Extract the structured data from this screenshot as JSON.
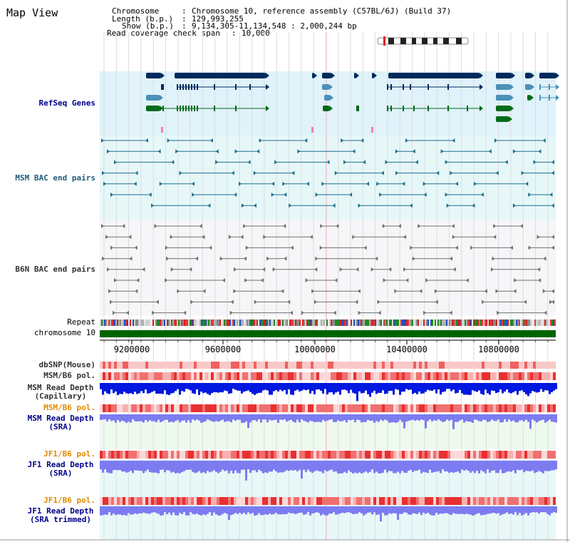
{
  "page": {
    "title": "Map View"
  },
  "info": {
    "chromosome_label": "Chromosome",
    "chromosome_value": "Chromosome 10, reference assembly (C57BL/6J) (Build 37)",
    "length_label": "Length (b.p.)",
    "length_value": "129,993,255",
    "show_label": "Show (b.p.)",
    "show_value": "9,134,305-11,134,548 : 2,000,244 bp",
    "span_label": "Read coverage check span",
    "span_value": "10,000"
  },
  "tracks": {
    "refseq": "RefSeq Genes",
    "msm_bac": "MSM BAC end pairs",
    "b6n_bac": "B6N BAC end pairs",
    "repeat": "Repeat",
    "chromosome": "chromosome 10",
    "dbsnp": "dbSNP(Mouse)",
    "msm_b6_pol": "MSM/B6 pol.",
    "msm_depth_cap_1": "MSM Read Depth",
    "msm_depth_cap_2": "(Capillary)",
    "msm_b6_pol_2": "MSM/B6 pol.",
    "msm_depth_sra_1": "MSM Read Depth",
    "msm_depth_sra_2": "(SRA)",
    "jf1_b6_pol": "JF1/B6 pol.",
    "jf1_depth_sra_1": "JF1 Read Depth",
    "jf1_depth_sra_2": "(SRA)",
    "jf1_b6_pol_2": "JF1/B6 pol.",
    "jf1_depth_trim_1": "JF1 Read Depth",
    "jf1_depth_trim_2": "(SRA trimmed)"
  },
  "axis": {
    "ticks": [
      "9200000",
      "9600000",
      "10000000",
      "10400000",
      "10800000"
    ]
  },
  "colors": {
    "refseq_bg": "#e0f2fa",
    "gene_dark": "#002a5c",
    "gene_mid": "#4a90b8",
    "gene_green": "#006b1a",
    "bac_teal": "#1f6e8c",
    "bac_gray": "#707070",
    "chromosome_bar": "#006400",
    "depth_blue": "#0018e0",
    "depth_light": "#7c7cf0",
    "pol_red": "#e83030"
  }
}
